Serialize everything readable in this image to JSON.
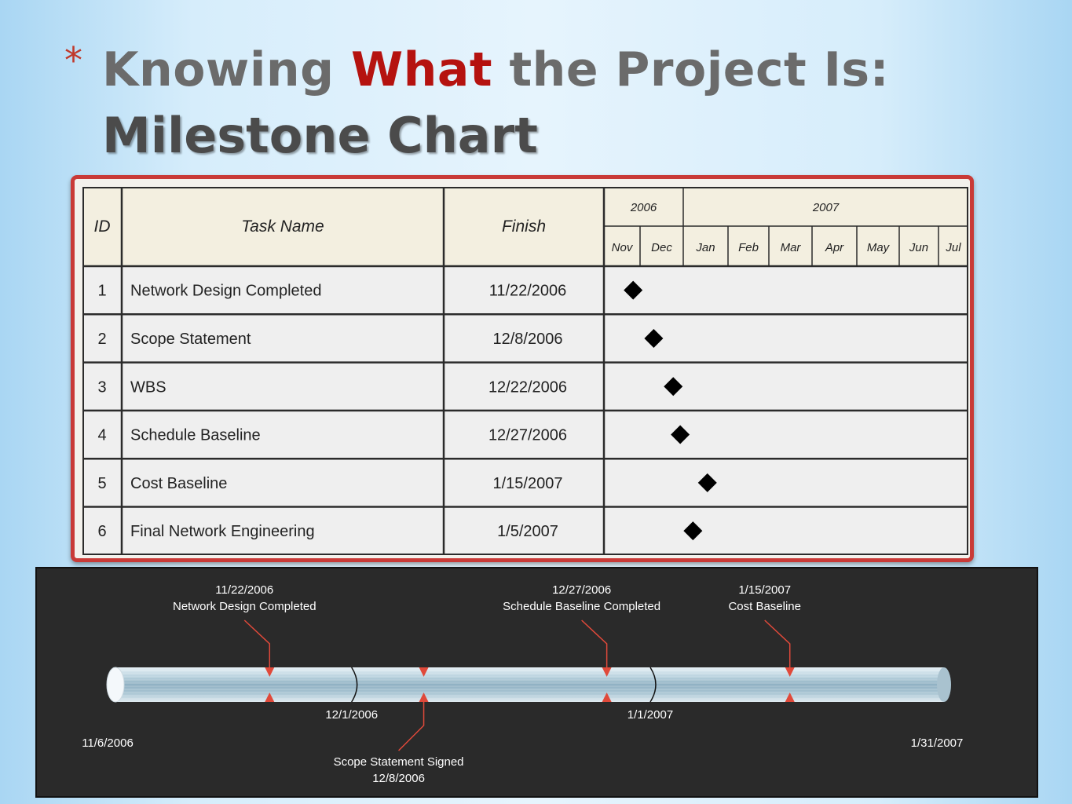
{
  "slide": {
    "bullet": "*",
    "title_part1": "Knowing ",
    "title_accent": "What",
    "title_part2": " the Project Is:",
    "subtitle": "Milestone Chart"
  },
  "table": {
    "headers": {
      "id": "ID",
      "task": "Task Name",
      "finish": "Finish"
    },
    "years": [
      {
        "label": "2006",
        "span": 2
      },
      {
        "label": "2007",
        "span": 7
      }
    ],
    "months": [
      "Nov",
      "Dec",
      "Jan",
      "Feb",
      "Mar",
      "Apr",
      "May",
      "Jun",
      "Jul"
    ],
    "rows": [
      {
        "id": "1",
        "task": "Network Design Completed",
        "finish": "11/22/2006",
        "date": "2006-11-22"
      },
      {
        "id": "2",
        "task": "Scope Statement",
        "finish": "12/8/2006",
        "date": "2006-12-08"
      },
      {
        "id": "3",
        "task": "WBS",
        "finish": "12/22/2006",
        "date": "2006-12-22"
      },
      {
        "id": "4",
        "task": "Schedule Baseline",
        "finish": "12/27/2006",
        "date": "2006-12-27"
      },
      {
        "id": "5",
        "task": "Cost Baseline",
        "finish": "1/15/2007",
        "date": "2007-01-15"
      },
      {
        "id": "6",
        "task": "Final Network Engineering",
        "finish": "1/5/2007",
        "date": "2007-01-05"
      }
    ],
    "marker_color": "#000000"
  },
  "timeline": {
    "start": {
      "label": "11/6/2006",
      "date": "2006-11-06"
    },
    "end": {
      "label": "1/31/2007",
      "date": "2007-01-31"
    },
    "dividers": [
      {
        "label": "12/1/2006",
        "date": "2006-12-01"
      },
      {
        "label": "1/1/2007",
        "date": "2007-01-01"
      }
    ],
    "milestones": [
      {
        "date_label": "11/22/2006",
        "name": "Network Design Completed",
        "date": "2006-11-22",
        "side": "above"
      },
      {
        "date_label": "12/8/2006",
        "name": "Scope Statement Signed",
        "date": "2006-12-08",
        "side": "below"
      },
      {
        "date_label": "12/27/2006",
        "name": "Schedule Baseline Completed",
        "date": "2006-12-27",
        "side": "above"
      },
      {
        "date_label": "1/15/2007",
        "name": "Cost Baseline",
        "date": "2007-01-15",
        "side": "above"
      }
    ],
    "colors": {
      "marker": "#e0493a",
      "text": "#ffffff",
      "background": "#2a2a2a"
    }
  }
}
